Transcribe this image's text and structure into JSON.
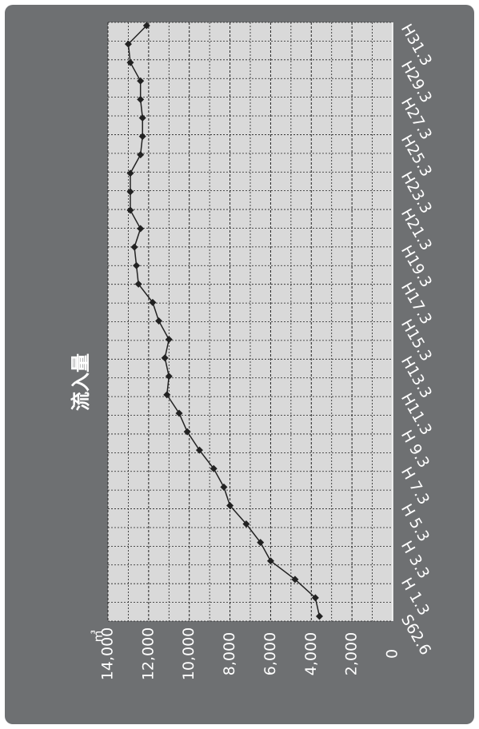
{
  "chart_data": {
    "type": "line",
    "title": "流入量",
    "unit_label": "㎥",
    "y_ticks": [
      "0",
      "2,000",
      "4,000",
      "6,000",
      "8,000",
      "10,000",
      "12,000",
      "14,000"
    ],
    "ylim": [
      0,
      14000
    ],
    "x_tick_labels": [
      "S62.6",
      "H 1.3",
      "H 3.3",
      "H 5.3",
      "H 7.3",
      "H 9.3",
      "H11.3",
      "H13.3",
      "H15.3",
      "H17.3",
      "H19.3",
      "H21.3",
      "H23.3",
      "H25.3",
      "H27.3",
      "H29.3",
      "H31.3"
    ],
    "grid": true,
    "series": [
      {
        "color": "#222222",
        "values": [
          3600,
          3800,
          4800,
          6000,
          6500,
          7200,
          8000,
          8300,
          8800,
          9500,
          10100,
          10500,
          11100,
          11000,
          11200,
          11000,
          11500,
          11800,
          12500,
          12600,
          12700,
          12400,
          12900,
          12900,
          12900,
          12400,
          12300,
          12300,
          12400,
          12400,
          12900,
          13000,
          12100
        ]
      }
    ]
  },
  "colors": {
    "background": "#6e7072",
    "plot_area": "#d9d9d9",
    "grid": "#222222",
    "text": "#ffffff"
  }
}
